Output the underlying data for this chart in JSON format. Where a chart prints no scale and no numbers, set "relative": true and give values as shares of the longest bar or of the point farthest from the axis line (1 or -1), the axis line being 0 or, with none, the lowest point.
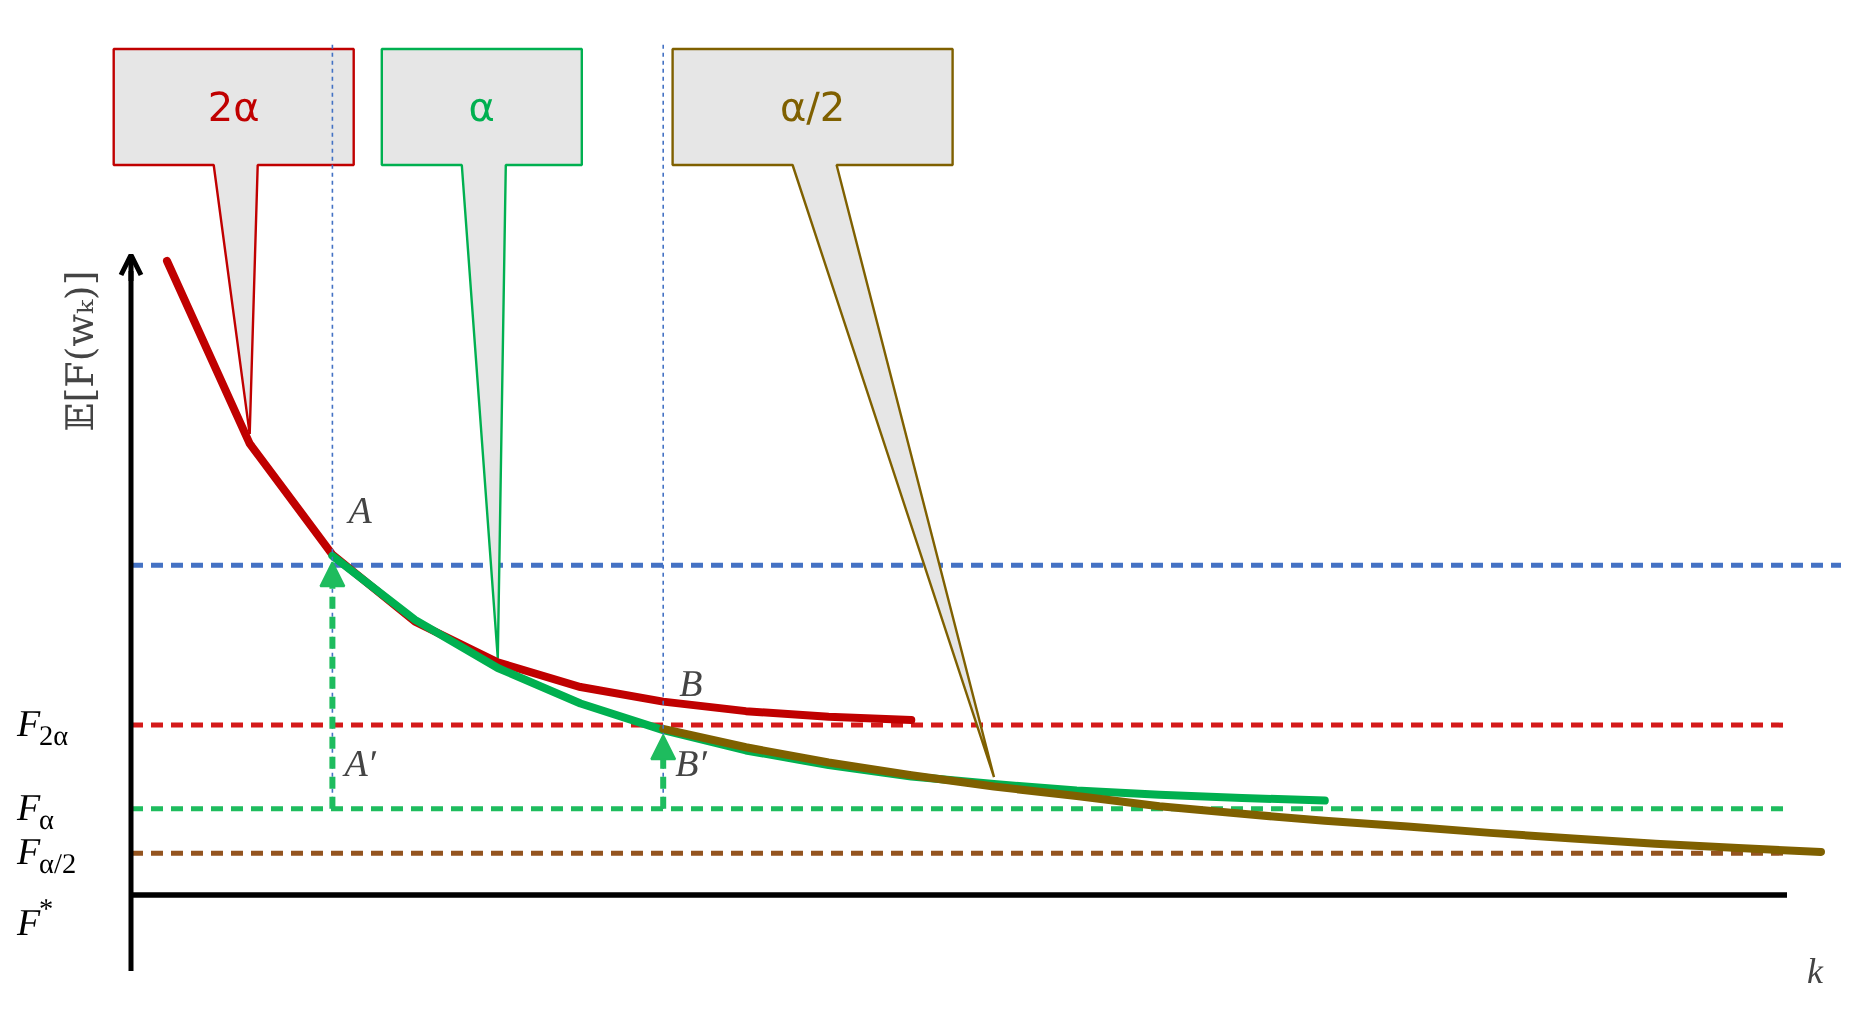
{
  "chart_data": {
    "type": "line",
    "relative": true,
    "xlabel": "k",
    "ylabel": "𝔼[F(wₖ)]",
    "categories": [
      null,
      null,
      null,
      null,
      null,
      null,
      null,
      null,
      null,
      null,
      null,
      null,
      null,
      null,
      null,
      null,
      null,
      null,
      null,
      null,
      null
    ],
    "series": [
      {
        "name": "2α",
        "color": "#c00000",
        "values": [
          1.0,
          0.712,
          0.537,
          0.431,
          0.367,
          0.328,
          0.305,
          0.29,
          0.281,
          0.276,
          null,
          null,
          null,
          null,
          null,
          null,
          null,
          null,
          null,
          null,
          null
        ]
      },
      {
        "name": "α",
        "color": "#00b050",
        "values": [
          null,
          null,
          0.535,
          0.434,
          0.358,
          0.302,
          0.26,
          0.228,
          0.205,
          0.187,
          0.175,
          0.165,
          0.158,
          0.153,
          0.149,
          null,
          null,
          null,
          null,
          null,
          null
        ]
      },
      {
        "name": "α/2",
        "color": "#7f6000",
        "values": [
          null,
          null,
          null,
          null,
          null,
          null,
          0.262,
          0.233,
          0.209,
          0.189,
          0.171,
          0.156,
          0.14,
          0.128,
          0.117,
          0.108,
          0.098,
          0.089,
          0.081,
          0.074,
          0.068
        ]
      }
    ],
    "ref_lines": [
      {
        "axis": "y",
        "value": 0.52,
        "label": null,
        "color": "#4472c4",
        "line_style": "dashed"
      },
      {
        "axis": "y",
        "value": 0.268,
        "label": "F$_{2α}$",
        "color": "#d41a1a",
        "line_style": "dashed"
      },
      {
        "axis": "y",
        "value": 0.136,
        "label": "F$_{α}$",
        "color": "#1ebc5e",
        "line_style": "dashed"
      },
      {
        "axis": "y",
        "value": 0.066,
        "label": "F$_{α/2}$",
        "color": "#94541f",
        "line_style": "dashed"
      },
      {
        "axis": "y",
        "value": 0,
        "label": "F$^{*}$",
        "color": "#000000",
        "line_style": "solid"
      }
    ],
    "annotations": [
      "A",
      "B",
      "A′",
      "B′"
    ]
  }
}
